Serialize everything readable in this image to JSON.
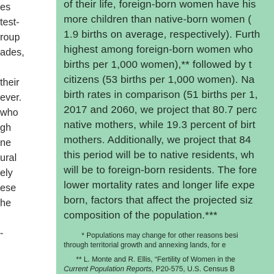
{
  "left_column": {
    "fragments": [
      "es",
      "test-",
      "roup",
      "ades,",
      "",
      "their",
      "ever.",
      "who",
      "gh",
      "ne",
      "ural",
      "ely",
      "ese",
      "he",
      "",
      "-"
    ]
  },
  "sidebar": {
    "lines": [
      "of their life, foreign-born women have his",
      "more children than native-born women (",
      "1.9 births on average, respectively). Furth",
      "highest among foreign-born women who",
      "births per 1,000 women),** followed by t",
      "citizens (53 births per 1,000 women). Na",
      "birth rates in comparison (51 births per 1,",
      "2017 and 2060, we project that 80.7 perc",
      "native mothers, while 19.3 percent of birt",
      "mothers. Additionally, we project that 84",
      "this period will be to native residents, wh",
      "will be to foreign-born residents. The fore",
      "lower mortality rates and longer life expe",
      "born, factors that affect the projected siz",
      "composition of the population.***"
    ],
    "footnotes": {
      "f1_line1": "* Populations may change for other reasons besi",
      "f1_line2": "through territorial growth and annexing lands, for e",
      "f2_line1": "** L. Monte and R. Ellis, “Fertility of Women in the",
      "f2_line2_italic": "Current Population Reports",
      "f2_line2_rest": ", P20-575, U.S. Census B"
    }
  }
}
